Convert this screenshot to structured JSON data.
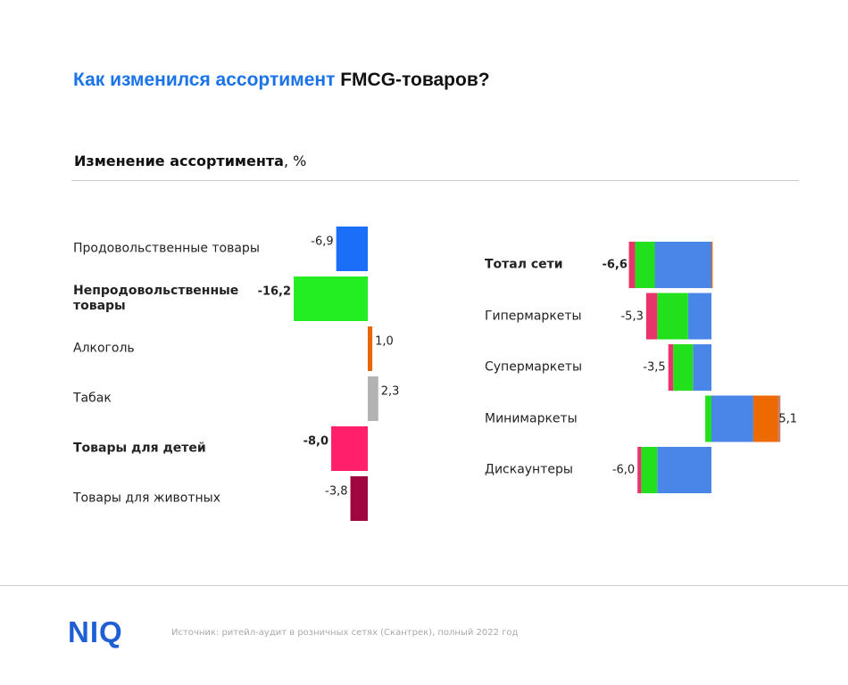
{
  "title": {
    "blue": "Как изменился ассортимент",
    "black": "FMCG-товаров?"
  },
  "subtitle": {
    "bold": "Изменение ассортимента",
    "normal": ", %"
  },
  "logo": "NIQ",
  "source": "Источник: ритейл-аудит в розничных сетях (Скантрек), полный 2022 год",
  "chart_data": [
    {
      "type": "bar",
      "categories": [
        "Продовольственные товары",
        "Непродовольственные товары",
        "Алкоголь",
        "Табак",
        "Товары для детей",
        "Товары для животных"
      ],
      "values": [
        -6.9,
        -16.2,
        1.0,
        2.3,
        -8.0,
        -3.8
      ],
      "value_labels": [
        "-6,9",
        "-16,2",
        "1,0",
        "2,3",
        "-8,0",
        "-3,8"
      ],
      "colors": [
        "#1a6ef7",
        "#22ee22",
        "#e8650a",
        "#b3b3b3",
        "#ff1f6b",
        "#a0063f"
      ],
      "bold": [
        false,
        true,
        false,
        false,
        true,
        false
      ]
    },
    {
      "type": "stacked_bar",
      "categories": [
        "Тотал сети",
        "Гипермаркеты",
        "Супермаркеты",
        "Минимаркеты",
        "Дискаунтеры"
      ],
      "series": [
        {
          "color": "#4a86e8",
          "values": [
            -4.6,
            -1.9,
            -1.5,
            3.4,
            -4.4
          ]
        },
        {
          "color": "#22e01c",
          "values": [
            -1.6,
            -2.5,
            -1.6,
            -0.5,
            -1.3
          ]
        },
        {
          "color": "#e8336b",
          "values": [
            -0.5,
            -0.9,
            -0.4,
            0,
            -0.3
          ]
        },
        {
          "color": "#ec6a00",
          "values": [
            0.1,
            0,
            0,
            2.0,
            0
          ]
        },
        {
          "color": "#c8826a",
          "values": [
            0,
            0,
            0,
            0.2,
            0
          ]
        }
      ],
      "values": [
        -6.6,
        -5.3,
        -3.5,
        5.1,
        -6.0
      ],
      "value_labels": [
        "-6,6",
        "-5,3",
        "-3,5",
        "5,1",
        "-6,0"
      ],
      "bold": [
        true,
        false,
        false,
        false,
        false
      ]
    }
  ]
}
